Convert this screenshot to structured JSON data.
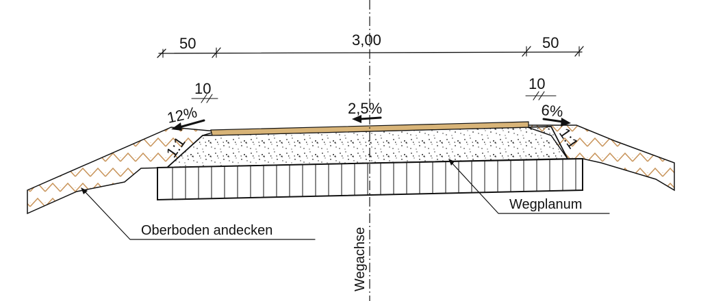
{
  "labels": {
    "dim_left": "50",
    "dim_center": "3,00",
    "dim_right": "50",
    "offset_left": "10",
    "offset_right": "10",
    "slope_left_shoulder": "12%",
    "slope_center": "2,5%",
    "slope_right_shoulder": "6%",
    "batter_left": "1:1",
    "batter_right": "1:1",
    "callout_topsoil": "Oberboden andecken",
    "callout_subgrade": "Wegplanum",
    "axis": "Wegachse"
  },
  "colors": {
    "soil_hatch": "#c8945a",
    "surface_layer": "#d8b478",
    "line": "#111111"
  }
}
